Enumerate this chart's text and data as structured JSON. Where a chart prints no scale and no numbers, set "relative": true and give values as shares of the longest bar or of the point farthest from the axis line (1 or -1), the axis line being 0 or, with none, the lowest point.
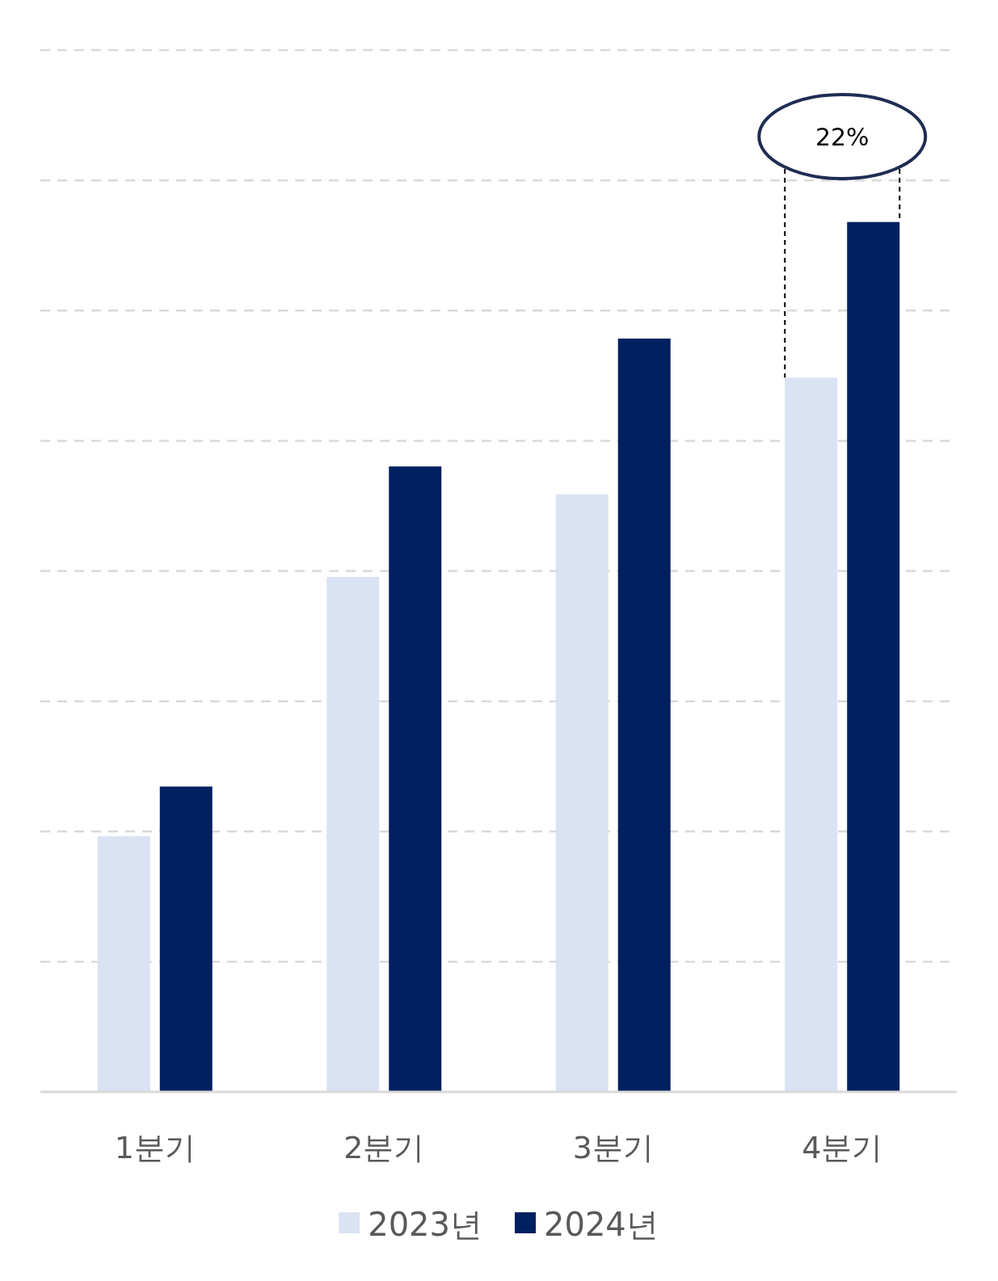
{
  "chart_data": {
    "type": "bar",
    "relative": true,
    "categories": [
      "1분기",
      "2분기",
      "3분기",
      "4분기"
    ],
    "series": [
      {
        "name": "2023년",
        "color": "#dae3f3",
        "values": [
          0.294,
          0.592,
          0.687,
          0.821
        ]
      },
      {
        "name": "2024년",
        "color": "#002060",
        "values": [
          0.351,
          0.719,
          0.866,
          1
        ]
      }
    ],
    "annotations": [
      "22%"
    ],
    "grid": "y",
    "legend": "bottom"
  }
}
